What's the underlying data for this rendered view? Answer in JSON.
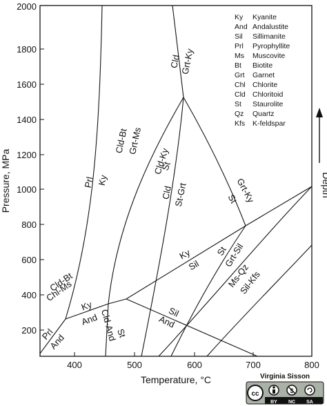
{
  "diagram": {
    "x_axis": {
      "label": "Temperature, °C",
      "ticks": [
        "400",
        "500",
        "600",
        "700",
        "800"
      ]
    },
    "y_axis": {
      "label": "Pressure, MPa",
      "ticks": [
        "200",
        "400",
        "600",
        "800",
        "1000",
        "1200",
        "1400",
        "1600",
        "1800",
        "2000"
      ]
    },
    "depth_label": "Depth",
    "field_labels": {
      "prl": "Prl",
      "ky_left": "Ky",
      "cld_bt": "Cld-Bt",
      "grt_ms": "Grt-Ms",
      "cld_top": "Cld",
      "grt_ky_top": "Grt-Ky",
      "cld_ky": "Cld-Ky",
      "st_mid": "St",
      "cld_mid": "Cld",
      "st_grt": "St-Grt",
      "grt_ky_right": "Grt-Ky",
      "st_right": "St",
      "ky_mid": "Ky",
      "sil_mid": "Sil",
      "st_low": "St",
      "grt_sil": "Grt-Sil",
      "ms_qz": "Ms-Qz",
      "sil_kfs": "Sil-Kfs",
      "cld_bt_low": "Cld-Bt",
      "chl_ms": "Chl-Ms",
      "ky_low": "Ky",
      "and_low": "And",
      "prl_low": "Prl",
      "and_bottom": "And",
      "cld_and": "Cld-And",
      "st_bottom": "St",
      "sil_low": "Sil",
      "and_right": "And"
    },
    "legend": [
      {
        "abbr": "Ky",
        "name": "Kyanite"
      },
      {
        "abbr": "And",
        "name": "Andalustite"
      },
      {
        "abbr": "Sil",
        "name": "Sillimanite"
      },
      {
        "abbr": "Prl",
        "name": "Pyrophyllite"
      },
      {
        "abbr": "Ms",
        "name": "Muscovite"
      },
      {
        "abbr": "Bt",
        "name": "Biotite"
      },
      {
        "abbr": "Grt",
        "name": "Garnet"
      },
      {
        "abbr": "Chl",
        "name": "Chlorite"
      },
      {
        "abbr": "Cld",
        "name": "Chloritoid"
      },
      {
        "abbr": "St",
        "name": "Staurolite"
      },
      {
        "abbr": "Qz",
        "name": "Quartz"
      },
      {
        "abbr": "Kfs",
        "name": "K-feldspar"
      }
    ]
  },
  "credit": {
    "author": "Virginia Sisson",
    "license_icons": [
      "cc",
      "BY",
      "NC",
      "SA"
    ]
  }
}
